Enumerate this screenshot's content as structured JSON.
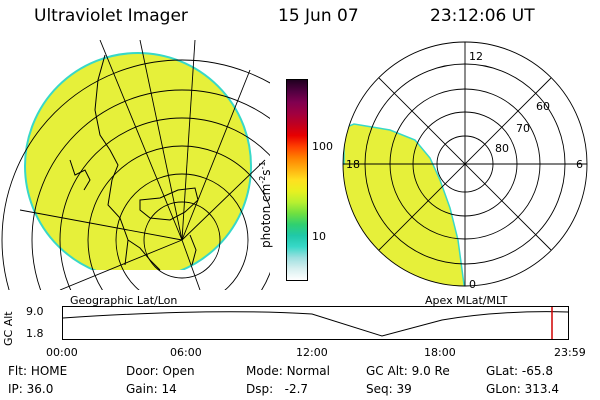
{
  "header": {
    "title": "Ultraviolet Imager",
    "date": "15 Jun 07",
    "time": "23:12:06 UT"
  },
  "left_map": {
    "caption": "Geographic Lat/Lon"
  },
  "right_map": {
    "caption": "Apex MLat/MLT",
    "mlt_labels": {
      "top": "12",
      "left": "18",
      "right": "6",
      "bottom": "0"
    },
    "lat_labels": [
      "60",
      "70",
      "80"
    ]
  },
  "colorbar": {
    "unit": "photon cm",
    "unit_exp1": "-2",
    "unit_mid": "s",
    "unit_exp2": "-1",
    "tick_100": "100",
    "tick_10": "10",
    "colors": [
      "#ffffff",
      "#d8f0f0",
      "#9ee0e0",
      "#38d8c8",
      "#20c8a8",
      "#30d070",
      "#70e040",
      "#b8f030",
      "#e8f020",
      "#ffe020",
      "#ffb010",
      "#ff8000",
      "#ff4000",
      "#e80000",
      "#c00020",
      "#a00040",
      "#800050",
      "#500040",
      "#200020"
    ]
  },
  "timeline": {
    "ylabel": "GC Alt",
    "y_max_label": "9.0",
    "y_min_label": "1.8",
    "x_ticks": [
      "00:00",
      "06:00",
      "12:00",
      "18:00",
      "23:59"
    ],
    "marker_color": "#d00000"
  },
  "info": {
    "flt_label": "Flt:",
    "flt_value": "HOME",
    "ip_label": "IP:",
    "ip_value": "36.0",
    "door_label": "Door:",
    "door_value": "Open",
    "gain_label": "Gain:",
    "gain_value": "14",
    "mode_label": "Mode:",
    "mode_value": "Normal",
    "dsp_label": "Dsp:",
    "dsp_value": "-2.7",
    "gcalt_label": "GC Alt:",
    "gcalt_value": "9.0 Re",
    "seq_label": "Seq:",
    "seq_value": "39",
    "glat_label": "GLat:",
    "glat_value": "-65.8",
    "glon_label": "GLon:",
    "glon_value": "313.4"
  },
  "colors": {
    "image_fill": "#e6f03a",
    "image_edge": "#38d8c8"
  }
}
